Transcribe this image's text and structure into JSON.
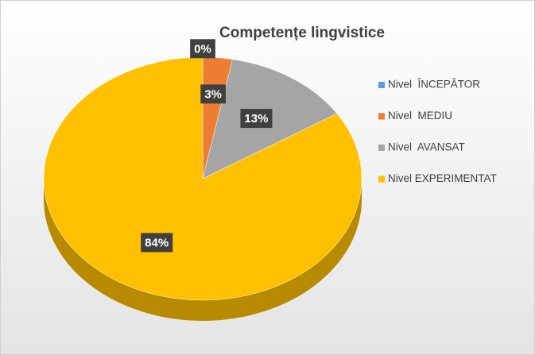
{
  "chart_data": {
    "type": "pie",
    "title": "Competențe  lingvistice",
    "categories": [
      "Nivel  ÎNCEPĂTOR",
      "Nivel  MEDIU",
      "Nivel  AVANSAT",
      "Nivel EXPERIMENTAT"
    ],
    "values": [
      0,
      3,
      13,
      84
    ],
    "value_labels": [
      "0%",
      "3%",
      "13%",
      "84%"
    ],
    "colors": [
      "#5b9bd5",
      "#ed7d31",
      "#a5a5a5",
      "#ffc000"
    ],
    "legend": "right"
  }
}
